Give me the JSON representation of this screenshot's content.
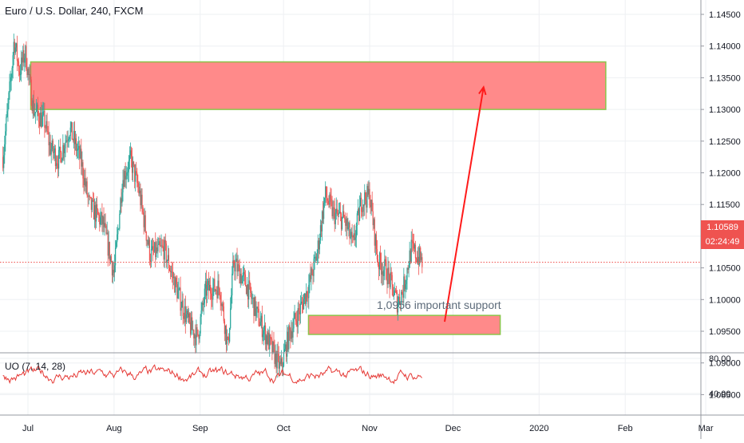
{
  "chart_data": {
    "type": "candlestick",
    "title": "Euro / U.S. Dollar, 240, FXCM",
    "y_ticks": [
      "1.14500",
      "1.14000",
      "1.13500",
      "1.13000",
      "1.12500",
      "1.12000",
      "1.11500",
      "1.11000",
      "1.10500",
      "1.10000",
      "1.09500",
      "1.09000",
      "1.08500"
    ],
    "ylim": [
      1.0825,
      1.1475
    ],
    "x_ticks": [
      {
        "label": "Jul",
        "day": 0
      },
      {
        "label": "Aug",
        "day": 31
      },
      {
        "label": "Sep",
        "day": 62
      },
      {
        "label": "Oct",
        "day": 92
      },
      {
        "label": "Nov",
        "day": 123
      },
      {
        "label": "Dec",
        "day": 153
      },
      {
        "label": "2020",
        "day": 184
      },
      {
        "label": "Feb",
        "day": 215
      },
      {
        "label": "Mar",
        "day": 244
      }
    ],
    "price_path": [
      {
        "day": -9,
        "price": 1.1225
      },
      {
        "day": -6,
        "price": 1.1355
      },
      {
        "day": -5,
        "price": 1.141
      },
      {
        "day": -3,
        "price": 1.136
      },
      {
        "day": -1,
        "price": 1.139
      },
      {
        "day": 2,
        "price": 1.13
      },
      {
        "day": 6,
        "price": 1.128
      },
      {
        "day": 8,
        "price": 1.124
      },
      {
        "day": 11,
        "price": 1.122
      },
      {
        "day": 15,
        "price": 1.127
      },
      {
        "day": 19,
        "price": 1.122
      },
      {
        "day": 22,
        "price": 1.115
      },
      {
        "day": 27,
        "price": 1.112
      },
      {
        "day": 31,
        "price": 1.104
      },
      {
        "day": 34,
        "price": 1.119
      },
      {
        "day": 37,
        "price": 1.122
      },
      {
        "day": 40,
        "price": 1.117
      },
      {
        "day": 44,
        "price": 1.107
      },
      {
        "day": 49,
        "price": 1.108
      },
      {
        "day": 54,
        "price": 1.101
      },
      {
        "day": 58,
        "price": 1.096
      },
      {
        "day": 61,
        "price": 1.094
      },
      {
        "day": 64,
        "price": 1.1015
      },
      {
        "day": 69,
        "price": 1.102
      },
      {
        "day": 72,
        "price": 1.0925
      },
      {
        "day": 74,
        "price": 1.106
      },
      {
        "day": 79,
        "price": 1.102
      },
      {
        "day": 83,
        "price": 1.097
      },
      {
        "day": 87,
        "price": 1.093
      },
      {
        "day": 91,
        "price": 1.089
      },
      {
        "day": 94,
        "price": 1.0945
      },
      {
        "day": 98,
        "price": 1.0985
      },
      {
        "day": 101,
        "price": 1.102
      },
      {
        "day": 104,
        "price": 1.107
      },
      {
        "day": 107,
        "price": 1.1165
      },
      {
        "day": 110,
        "price": 1.1135
      },
      {
        "day": 114,
        "price": 1.1125
      },
      {
        "day": 117,
        "price": 1.1085
      },
      {
        "day": 120,
        "price": 1.1155
      },
      {
        "day": 123,
        "price": 1.1165
      },
      {
        "day": 126,
        "price": 1.106
      },
      {
        "day": 129,
        "price": 1.1045
      },
      {
        "day": 133,
        "price": 1.0995
      },
      {
        "day": 135,
        "price": 1.1015
      },
      {
        "day": 138,
        "price": 1.108
      },
      {
        "day": 141,
        "price": 1.1065
      },
      {
        "day": 142,
        "price": 1.10589
      }
    ],
    "last_price": "1.10589",
    "countdown": "02:24:49",
    "resistance_zone": {
      "start_day": 1,
      "end_day": 208,
      "low": 1.13,
      "high": 1.1375
    },
    "support_zone": {
      "start_day": 101,
      "end_day": 170,
      "low": 1.0945,
      "high": 1.0975
    },
    "arrow": {
      "from_day": 150,
      "from_price": 1.0965,
      "to_day": 164,
      "to_price": 1.1335
    },
    "annotation": "1,0956 important support",
    "oscillator": {
      "title": "UO (7, 14, 28)",
      "y_ticks": [
        "80.00",
        "40.00"
      ],
      "ylim": [
        26,
        82
      ]
    }
  },
  "colors": {
    "candle_up": "#26a69a",
    "candle_down": "#ef5350",
    "zone_fill": "#ff8a8a",
    "zone_border": "#8bc34a",
    "arrow": "#ff1a1a",
    "price_line": "#ef5350",
    "oscillator_line": "#e53935",
    "axis_text": "#131722",
    "annotation_text": "#5d6b7a"
  }
}
